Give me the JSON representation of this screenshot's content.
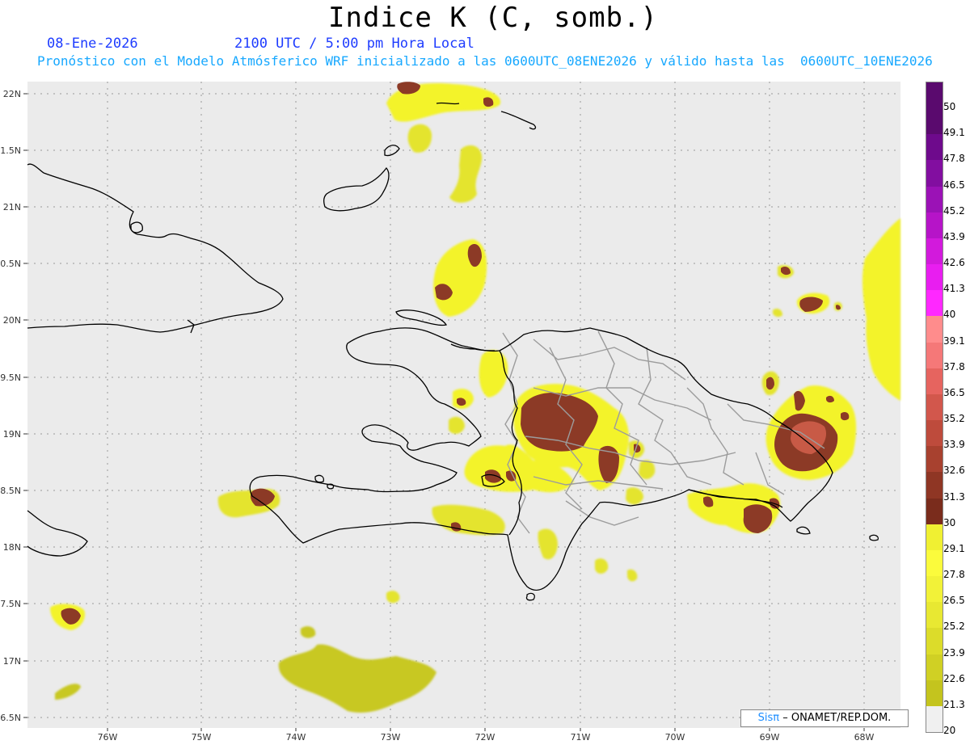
{
  "header": {
    "title": "Indice K (C, somb.)",
    "date": "08-Ene-2026",
    "time": "2100 UTC / 5:00 pm Hora Local",
    "forecast": "Pronóstico con el Modelo Atmósferico WRF inicializado a las 0600UTC_08ENE2026 y válido hasta las  0600UTC_10ENE2026"
  },
  "map": {
    "lat_labels": [
      "22N",
      "1.5N",
      "21N",
      "0.5N",
      "20N",
      "9.5N",
      "19N",
      "8.5N",
      "18N",
      "7.5N",
      "17N",
      "6.5N"
    ],
    "lon_labels": [
      "76W",
      "75W",
      "74W",
      "73W",
      "72W",
      "71W",
      "70W",
      "69W",
      "68W"
    ],
    "colors": {
      "background": "#ebebeb",
      "yellow_light": "#f5f52a",
      "yellow_dark": "#c8c81e",
      "brown": "#8c3a26",
      "coast": "#000000",
      "border_inner": "#a0a0a0"
    }
  },
  "legend": {
    "labels": [
      "50",
      "49.1",
      "47.8",
      "46.5",
      "45.2",
      "43.9",
      "42.6",
      "41.3",
      "40",
      "39.1",
      "37.8",
      "36.5",
      "35.2",
      "33.9",
      "32.6",
      "31.3",
      "30",
      "29.1",
      "27.8",
      "26.5",
      "25.2",
      "23.9",
      "22.6",
      "21.3",
      "20"
    ],
    "colors": [
      "#5a0a6e",
      "#6e0a8c",
      "#820ea0",
      "#9b12b6",
      "#b614c8",
      "#d21adc",
      "#e81ef0",
      "#ff28ff",
      "#ff8c8c",
      "#f57878",
      "#e6645f",
      "#d2574c",
      "#be4b3c",
      "#a8412f",
      "#8f3624",
      "#7a2c1c",
      "#f0f032",
      "#fbfb3c",
      "#f2f238",
      "#e8e832",
      "#dcdc2a",
      "#d0d024",
      "#c4c41e",
      "#c8c832"
    ]
  },
  "credit": {
    "brand": "Sisπ",
    "rest": "– ONAMET/REP.DOM."
  }
}
